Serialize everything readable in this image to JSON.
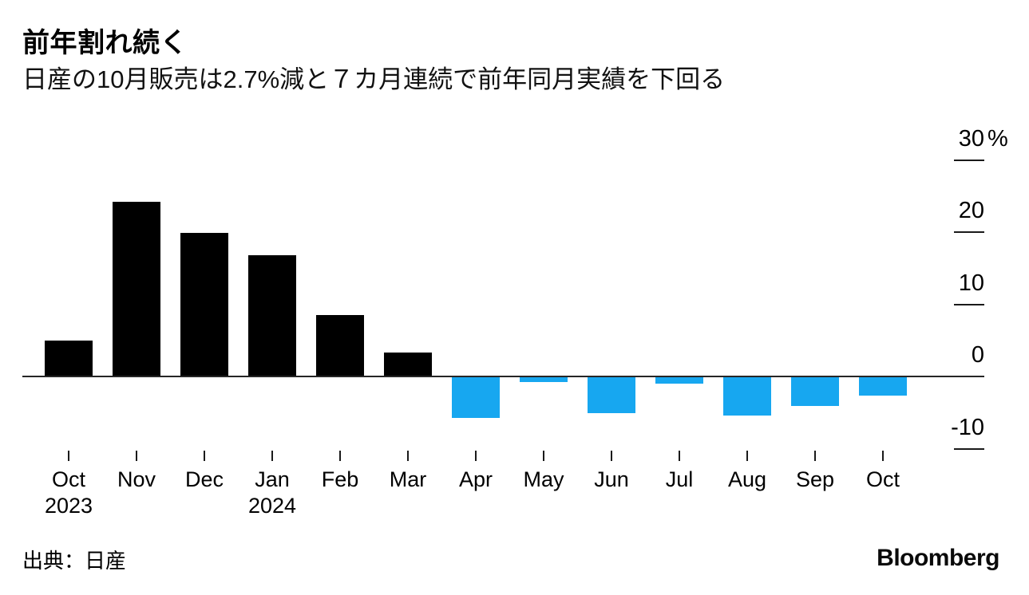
{
  "header": {
    "title": "前年割れ続く",
    "subtitle": "日産の10月販売は2.7%減と７カ月連続で前年同月実績を下回る"
  },
  "chart_data": {
    "type": "bar",
    "title": "前年割れ続く",
    "subtitle": "日産の10月販売は2.7%減と７カ月連続で前年同月実績を下回る",
    "categories": [
      "Oct 2023",
      "Nov",
      "Dec",
      "Jan 2024",
      "Feb",
      "Mar",
      "Apr",
      "May",
      "Jun",
      "Jul",
      "Aug",
      "Sep",
      "Oct"
    ],
    "values": [
      5.0,
      24.2,
      19.9,
      16.8,
      8.5,
      3.3,
      -5.7,
      -0.8,
      -5.1,
      -1.0,
      -5.4,
      -4.1,
      -2.7
    ],
    "unit": "%",
    "ylabel": "",
    "xlabel": "",
    "ylim": [
      -13,
      32
    ],
    "grid": "off",
    "legend": "none",
    "y_axis_position": "right",
    "positive_color": "#000000",
    "negative_color": "#17a7f0"
  },
  "y_axis": {
    "ticks": [
      {
        "label": "30",
        "suffix": "%",
        "value": 30
      },
      {
        "label": "20",
        "value": 20
      },
      {
        "label": "10",
        "value": 10
      },
      {
        "label": "0",
        "value": 0
      },
      {
        "label": "-10",
        "value": -10
      }
    ]
  },
  "x_axis": {
    "labels": [
      {
        "month": "Oct",
        "year": "2023"
      },
      {
        "month": "Nov"
      },
      {
        "month": "Dec"
      },
      {
        "month": "Jan",
        "year": "2024"
      },
      {
        "month": "Feb"
      },
      {
        "month": "Mar"
      },
      {
        "month": "Apr"
      },
      {
        "month": "May"
      },
      {
        "month": "Jun"
      },
      {
        "month": "Jul"
      },
      {
        "month": "Aug"
      },
      {
        "month": "Sep"
      },
      {
        "month": "Oct"
      }
    ]
  },
  "footer": {
    "source": "出典：日産",
    "brand": "Bloomberg"
  }
}
